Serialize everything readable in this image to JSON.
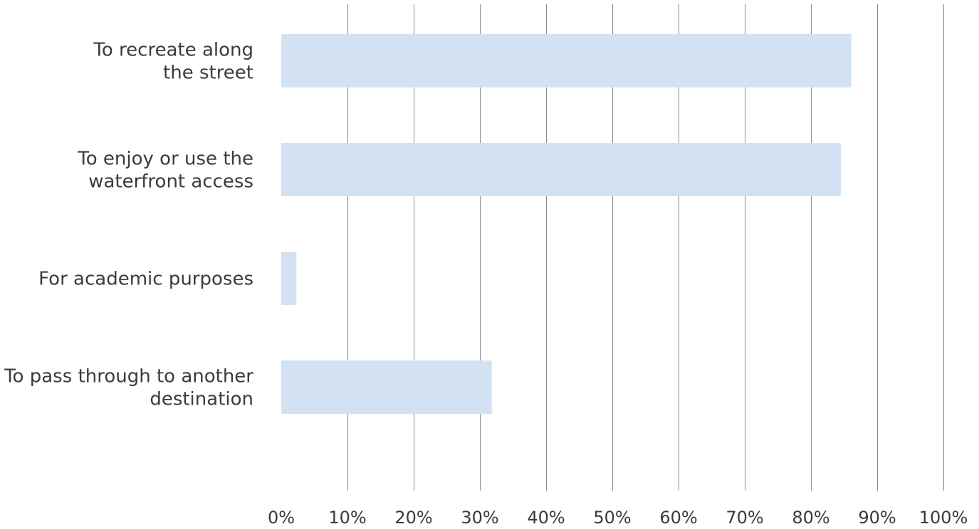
{
  "chart_data": {
    "type": "bar",
    "orientation": "horizontal",
    "categories": [
      "To recreate along the street",
      "To enjoy or use the waterfront access",
      "For academic purposes",
      "To pass through to another destination"
    ],
    "category_label_lines": [
      [
        "To recreate along",
        "the street"
      ],
      [
        "To enjoy or use the",
        "waterfront access"
      ],
      [
        "For academic purposes"
      ],
      [
        "To pass through to another",
        "destination"
      ]
    ],
    "values": [
      86.1,
      84.5,
      2.3,
      31.8
    ],
    "value_unit": "%",
    "xlim": [
      0,
      100
    ],
    "x_ticks": [
      0,
      10,
      20,
      30,
      40,
      50,
      60,
      70,
      80,
      90,
      100
    ],
    "x_tick_labels": [
      "0%",
      "10%",
      "20%",
      "30%",
      "40%",
      "50%",
      "60%",
      "70%",
      "80%",
      "90%",
      "100%"
    ],
    "title": "",
    "xlabel": "",
    "ylabel": "",
    "grid": "vertical",
    "legend": "none",
    "bar_color": "#d3e2f2",
    "grid_color": "#8a8a8a",
    "text_color": "#3b3b3b"
  }
}
